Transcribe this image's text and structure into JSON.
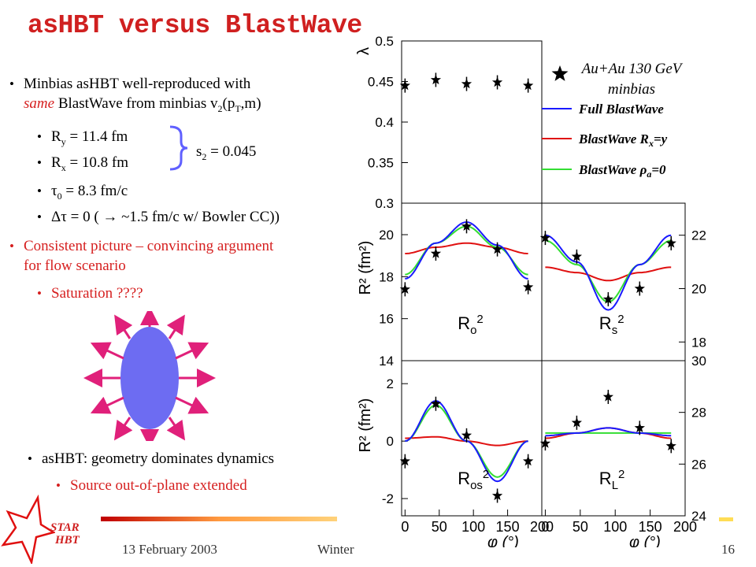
{
  "title": "asHBT versus BlastWave",
  "bullets": {
    "b1_line1": "Minbias asHBT well-reproduced with",
    "b1_same": "same",
    "b1_line2_rest": " BlastWave from minbias v",
    "b1_sub2": "2",
    "b1_paren_open": "(p",
    "b1_subT": "T",
    "b1_paren_close": ",m)",
    "ry_R": "R",
    "ry_sub": "y",
    "ry_val": " = 11.4 fm",
    "rx_R": "R",
    "rx_sub": "x",
    "rx_val": " = 10.8 fm",
    "tau_sym": "τ",
    "tau_sub": "0",
    "tau_val": " = 8.3 fm/c",
    "dtau_sym": "Δτ",
    "dtau_val": " = 0 ( → ~1.5 fm/c w/ Bowler CC))",
    "s2_s": "s",
    "s2_sub": "2",
    "s2_val": " = 0.045",
    "consistent_1": "Consistent picture – convincing argument",
    "consistent_2": "for flow scenario",
    "saturation": "Saturation ????",
    "geometry": "asHBT: geometry dominates dynamics",
    "source": "Source out-of-plane extended"
  },
  "footer": {
    "date": "13 February 2003",
    "conference": "Winter Workshop on Nuclear Dynamics",
    "page": "16",
    "logo_line1": "STAR",
    "logo_line2": "HBT"
  },
  "colors": {
    "title_red": "#d02020",
    "full_blastwave": "#1a1aff",
    "blastwave_rx_ry": "#e01010",
    "blastwave_rho": "#33dd33",
    "ellipse": "#6d6cf2",
    "arrows": "#e0207a",
    "brace": "#6060ff"
  },
  "chart_data": {
    "type": "line",
    "legend": {
      "marker_label_line1": "Au+Au 130 GeV",
      "marker_label_line2": "minbias",
      "series": [
        {
          "name": "Full BlastWave",
          "color": "#1a1aff"
        },
        {
          "name": "BlastWave R_x=R_y",
          "color": "#e01010"
        },
        {
          "name": "BlastWave ρ_a=0",
          "color": "#33dd33"
        }
      ]
    },
    "x_label": "φ (°)",
    "x_ticks": [
      0,
      50,
      100,
      150,
      200
    ],
    "panels": {
      "lambda": {
        "y_label": "λ",
        "ylim": [
          0.3,
          0.5
        ],
        "y_ticks": [
          "0.3",
          "0.35",
          "0.4",
          "0.45",
          "0.5"
        ],
        "points": [
          [
            0,
            0.445
          ],
          [
            45,
            0.452
          ],
          [
            90,
            0.447
          ],
          [
            135,
            0.449
          ],
          [
            180,
            0.445
          ]
        ]
      },
      "ro": {
        "label": "R_o²",
        "y_label": "R² (fm²)",
        "ylim": [
          14,
          21.5
        ],
        "y_ticks": [
          "14",
          "16",
          "18",
          "20"
        ],
        "points": [
          [
            0,
            17.4
          ],
          [
            45,
            19.1
          ],
          [
            90,
            20.4
          ],
          [
            135,
            19.3
          ],
          [
            180,
            17.5
          ]
        ],
        "curves": {
          "full": [
            [
              0,
              17.9
            ],
            [
              45,
              19.6
            ],
            [
              90,
              20.6
            ],
            [
              135,
              19.5
            ],
            [
              180,
              17.9
            ]
          ],
          "rxry": [
            [
              0,
              19.1
            ],
            [
              45,
              19.4
            ],
            [
              90,
              19.6
            ],
            [
              135,
              19.4
            ],
            [
              180,
              19.1
            ]
          ],
          "rho": [
            [
              0,
              18.1
            ],
            [
              45,
              19.6
            ],
            [
              90,
              20.4
            ],
            [
              135,
              19.4
            ],
            [
              180,
              18.1
            ]
          ]
        }
      },
      "rs": {
        "label": "R_s²",
        "y_label": "",
        "ylim": [
          17.3,
          23.2
        ],
        "y_ticks": [
          "18",
          "20",
          "22"
        ],
        "points": [
          [
            0,
            21.9
          ],
          [
            45,
            21.2
          ],
          [
            90,
            19.6
          ],
          [
            135,
            20.0
          ],
          [
            180,
            21.7
          ]
        ],
        "curves": {
          "full": [
            [
              0,
              22.0
            ],
            [
              45,
              21.0
            ],
            [
              90,
              19.2
            ],
            [
              135,
              20.9
            ],
            [
              180,
              22.0
            ]
          ],
          "rxry": [
            [
              0,
              20.8
            ],
            [
              45,
              20.6
            ],
            [
              90,
              20.3
            ],
            [
              135,
              20.6
            ],
            [
              180,
              20.8
            ]
          ],
          "rho": [
            [
              0,
              21.8
            ],
            [
              45,
              20.9
            ],
            [
              90,
              19.5
            ],
            [
              135,
              20.9
            ],
            [
              180,
              21.8
            ]
          ]
        }
      },
      "ros": {
        "label": "R_os²",
        "y_label": "R² (fm²)",
        "ylim": [
          -2.6,
          2.8
        ],
        "y_ticks": [
          "-2",
          "0",
          "2"
        ],
        "points": [
          [
            0,
            -0.7
          ],
          [
            45,
            1.3
          ],
          [
            90,
            0.2
          ],
          [
            135,
            -1.9
          ],
          [
            180,
            -0.7
          ]
        ],
        "curves": {
          "full": [
            [
              0,
              0.0
            ],
            [
              45,
              1.4
            ],
            [
              90,
              0.0
            ],
            [
              135,
              -1.4
            ],
            [
              180,
              0.0
            ]
          ],
          "rxry": [
            [
              0,
              0.1
            ],
            [
              45,
              0.15
            ],
            [
              90,
              0.0
            ],
            [
              135,
              -0.15
            ],
            [
              180,
              0.0
            ]
          ],
          "rho": [
            [
              0,
              0.0
            ],
            [
              45,
              1.25
            ],
            [
              90,
              0.0
            ],
            [
              135,
              -1.25
            ],
            [
              180,
              0.0
            ]
          ]
        }
      },
      "rl": {
        "label": "R_L²",
        "y_label": "",
        "ylim": [
          24,
          30
        ],
        "y_ticks": [
          "24",
          "26",
          "28",
          "30"
        ],
        "points": [
          [
            0,
            26.8
          ],
          [
            45,
            27.6
          ],
          [
            90,
            28.6
          ],
          [
            135,
            27.4
          ],
          [
            180,
            26.7
          ]
        ],
        "curves": {
          "full": [
            [
              0,
              27.1
            ],
            [
              45,
              27.2
            ],
            [
              90,
              27.4
            ],
            [
              135,
              27.2
            ],
            [
              180,
              27.1
            ]
          ],
          "rxry": [
            [
              0,
              27.0
            ],
            [
              45,
              27.2
            ],
            [
              90,
              27.4
            ],
            [
              135,
              27.2
            ],
            [
              180,
              27.0
            ]
          ],
          "rho": [
            [
              0,
              27.2
            ],
            [
              45,
              27.2
            ],
            [
              90,
              27.2
            ],
            [
              135,
              27.2
            ],
            [
              180,
              27.2
            ]
          ]
        }
      }
    }
  }
}
